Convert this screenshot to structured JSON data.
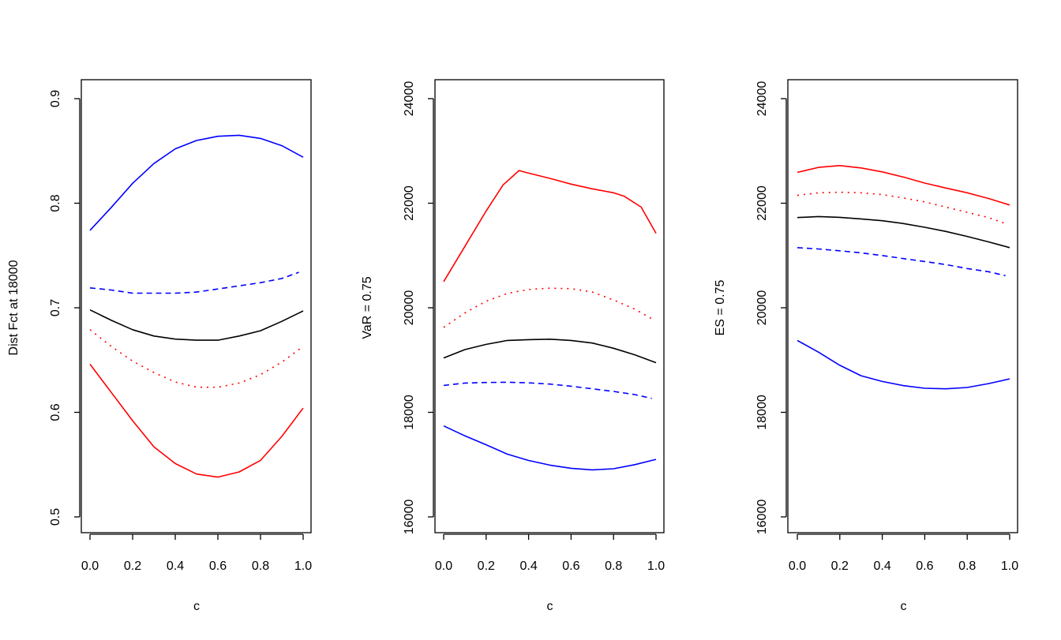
{
  "chart_data": [
    {
      "type": "line",
      "title": "",
      "xlabel": "c",
      "ylabel": "Dist Fct at  18000",
      "xlim": [
        0,
        1
      ],
      "ylim": [
        0.5,
        0.9
      ],
      "xticks": [
        "0.0",
        "0.2",
        "0.4",
        "0.6",
        "0.8",
        "1.0"
      ],
      "yticks": [
        "0.5",
        "0.6",
        "0.7",
        "0.8",
        "0.9"
      ],
      "grid": false,
      "series": [
        {
          "color": "#0000ff",
          "lty": "solid",
          "x": [
            0,
            0.1,
            0.2,
            0.3,
            0.4,
            0.5,
            0.6,
            0.7,
            0.8,
            0.9,
            1.0
          ],
          "y": [
            0.774,
            0.796,
            0.819,
            0.838,
            0.852,
            0.86,
            0.864,
            0.865,
            0.862,
            0.855,
            0.844
          ]
        },
        {
          "color": "#0000ff",
          "lty": "dashed",
          "x": [
            0,
            0.1,
            0.2,
            0.3,
            0.4,
            0.5,
            0.6,
            0.7,
            0.8,
            0.9,
            0.98
          ],
          "y": [
            0.719,
            0.717,
            0.714,
            0.714,
            0.714,
            0.715,
            0.718,
            0.721,
            0.724,
            0.728,
            0.734
          ]
        },
        {
          "color": "#000000",
          "lty": "solid",
          "x": [
            0,
            0.1,
            0.2,
            0.3,
            0.4,
            0.5,
            0.6,
            0.7,
            0.8,
            0.9,
            1.0
          ],
          "y": [
            0.698,
            0.688,
            0.679,
            0.673,
            0.67,
            0.669,
            0.669,
            0.673,
            0.678,
            0.687,
            0.697
          ]
        },
        {
          "color": "#ff0000",
          "lty": "dotted",
          "x": [
            0,
            0.1,
            0.2,
            0.3,
            0.4,
            0.5,
            0.6,
            0.7,
            0.8,
            0.9,
            1.0
          ],
          "y": [
            0.679,
            0.663,
            0.649,
            0.638,
            0.629,
            0.624,
            0.624,
            0.628,
            0.636,
            0.648,
            0.663
          ]
        },
        {
          "color": "#ff0000",
          "lty": "solid",
          "x": [
            0,
            0.1,
            0.2,
            0.3,
            0.4,
            0.5,
            0.6,
            0.7,
            0.8,
            0.9,
            1.0
          ],
          "y": [
            0.646,
            0.619,
            0.592,
            0.567,
            0.551,
            0.541,
            0.538,
            0.543,
            0.554,
            0.577,
            0.604
          ]
        }
      ]
    },
    {
      "type": "line",
      "title": "",
      "xlabel": "c",
      "ylabel": "VaR = 0.75",
      "xlim": [
        0,
        1
      ],
      "ylim": [
        16000,
        24000
      ],
      "xticks": [
        "0.0",
        "0.2",
        "0.4",
        "0.6",
        "0.8",
        "1.0"
      ],
      "yticks": [
        "16000",
        "18000",
        "20000",
        "22000",
        "24000"
      ],
      "grid": false,
      "series": [
        {
          "color": "#ff0000",
          "lty": "solid",
          "x": [
            0,
            0.1,
            0.2,
            0.28,
            0.355,
            0.4,
            0.5,
            0.6,
            0.7,
            0.8,
            0.85,
            0.93,
            1.0
          ],
          "y": [
            20500,
            21175,
            21850,
            22350,
            22625,
            22575,
            22475,
            22365,
            22275,
            22200,
            22135,
            21925,
            21425
          ]
        },
        {
          "color": "#ff0000",
          "lty": "dotted",
          "x": [
            0,
            0.1,
            0.2,
            0.3,
            0.4,
            0.5,
            0.6,
            0.7,
            0.8,
            0.9,
            0.98
          ],
          "y": [
            19625,
            19900,
            20125,
            20275,
            20350,
            20375,
            20365,
            20300,
            20150,
            19975,
            19790
          ]
        },
        {
          "color": "#000000",
          "lty": "solid",
          "x": [
            0,
            0.1,
            0.2,
            0.3,
            0.4,
            0.5,
            0.6,
            0.7,
            0.8,
            0.9,
            1.0
          ],
          "y": [
            19040,
            19200,
            19300,
            19375,
            19390,
            19400,
            19375,
            19325,
            19225,
            19100,
            18950
          ]
        },
        {
          "color": "#0000ff",
          "lty": "dashed",
          "x": [
            0,
            0.1,
            0.2,
            0.3,
            0.4,
            0.5,
            0.6,
            0.7,
            0.8,
            0.9,
            0.98
          ],
          "y": [
            18515,
            18560,
            18570,
            18575,
            18565,
            18540,
            18500,
            18450,
            18400,
            18340,
            18265
          ]
        },
        {
          "color": "#0000ff",
          "lty": "solid",
          "x": [
            0,
            0.1,
            0.2,
            0.3,
            0.4,
            0.5,
            0.6,
            0.7,
            0.8,
            0.9,
            1.0
          ],
          "y": [
            17740,
            17550,
            17380,
            17200,
            17080,
            16990,
            16930,
            16900,
            16920,
            17000,
            17100
          ]
        }
      ]
    },
    {
      "type": "line",
      "title": "",
      "xlabel": "c",
      "ylabel": "ES = 0.75",
      "xlim": [
        0,
        1
      ],
      "ylim": [
        16000,
        24000
      ],
      "xticks": [
        "0.0",
        "0.2",
        "0.4",
        "0.6",
        "0.8",
        "1.0"
      ],
      "yticks": [
        "16000",
        "18000",
        "20000",
        "22000",
        "24000"
      ],
      "grid": false,
      "series": [
        {
          "color": "#ff0000",
          "lty": "solid",
          "x": [
            0,
            0.1,
            0.2,
            0.3,
            0.4,
            0.5,
            0.6,
            0.7,
            0.8,
            0.9,
            1.0
          ],
          "y": [
            22590,
            22685,
            22720,
            22675,
            22600,
            22500,
            22385,
            22290,
            22200,
            22090,
            21965
          ]
        },
        {
          "color": "#ff0000",
          "lty": "dotted",
          "x": [
            0,
            0.1,
            0.2,
            0.3,
            0.4,
            0.5,
            0.6,
            0.7,
            0.8,
            0.9,
            0.98
          ],
          "y": [
            22150,
            22200,
            22210,
            22200,
            22165,
            22100,
            22025,
            21925,
            21825,
            21725,
            21610
          ]
        },
        {
          "color": "#000000",
          "lty": "solid",
          "x": [
            0,
            0.1,
            0.2,
            0.3,
            0.4,
            0.5,
            0.6,
            0.7,
            0.8,
            0.9,
            1.0
          ],
          "y": [
            21725,
            21745,
            21730,
            21700,
            21665,
            21610,
            21540,
            21460,
            21365,
            21260,
            21150
          ]
        },
        {
          "color": "#0000ff",
          "lty": "dashed",
          "x": [
            0,
            0.1,
            0.2,
            0.3,
            0.4,
            0.5,
            0.6,
            0.7,
            0.8,
            0.9,
            0.98
          ],
          "y": [
            21150,
            21125,
            21090,
            21050,
            21000,
            20940,
            20885,
            20825,
            20750,
            20690,
            20615
          ]
        },
        {
          "color": "#0000ff",
          "lty": "solid",
          "x": [
            0,
            0.1,
            0.2,
            0.3,
            0.4,
            0.5,
            0.6,
            0.7,
            0.8,
            0.9,
            1.0
          ],
          "y": [
            19375,
            19150,
            18900,
            18700,
            18590,
            18510,
            18460,
            18450,
            18475,
            18550,
            18640
          ]
        }
      ]
    }
  ]
}
